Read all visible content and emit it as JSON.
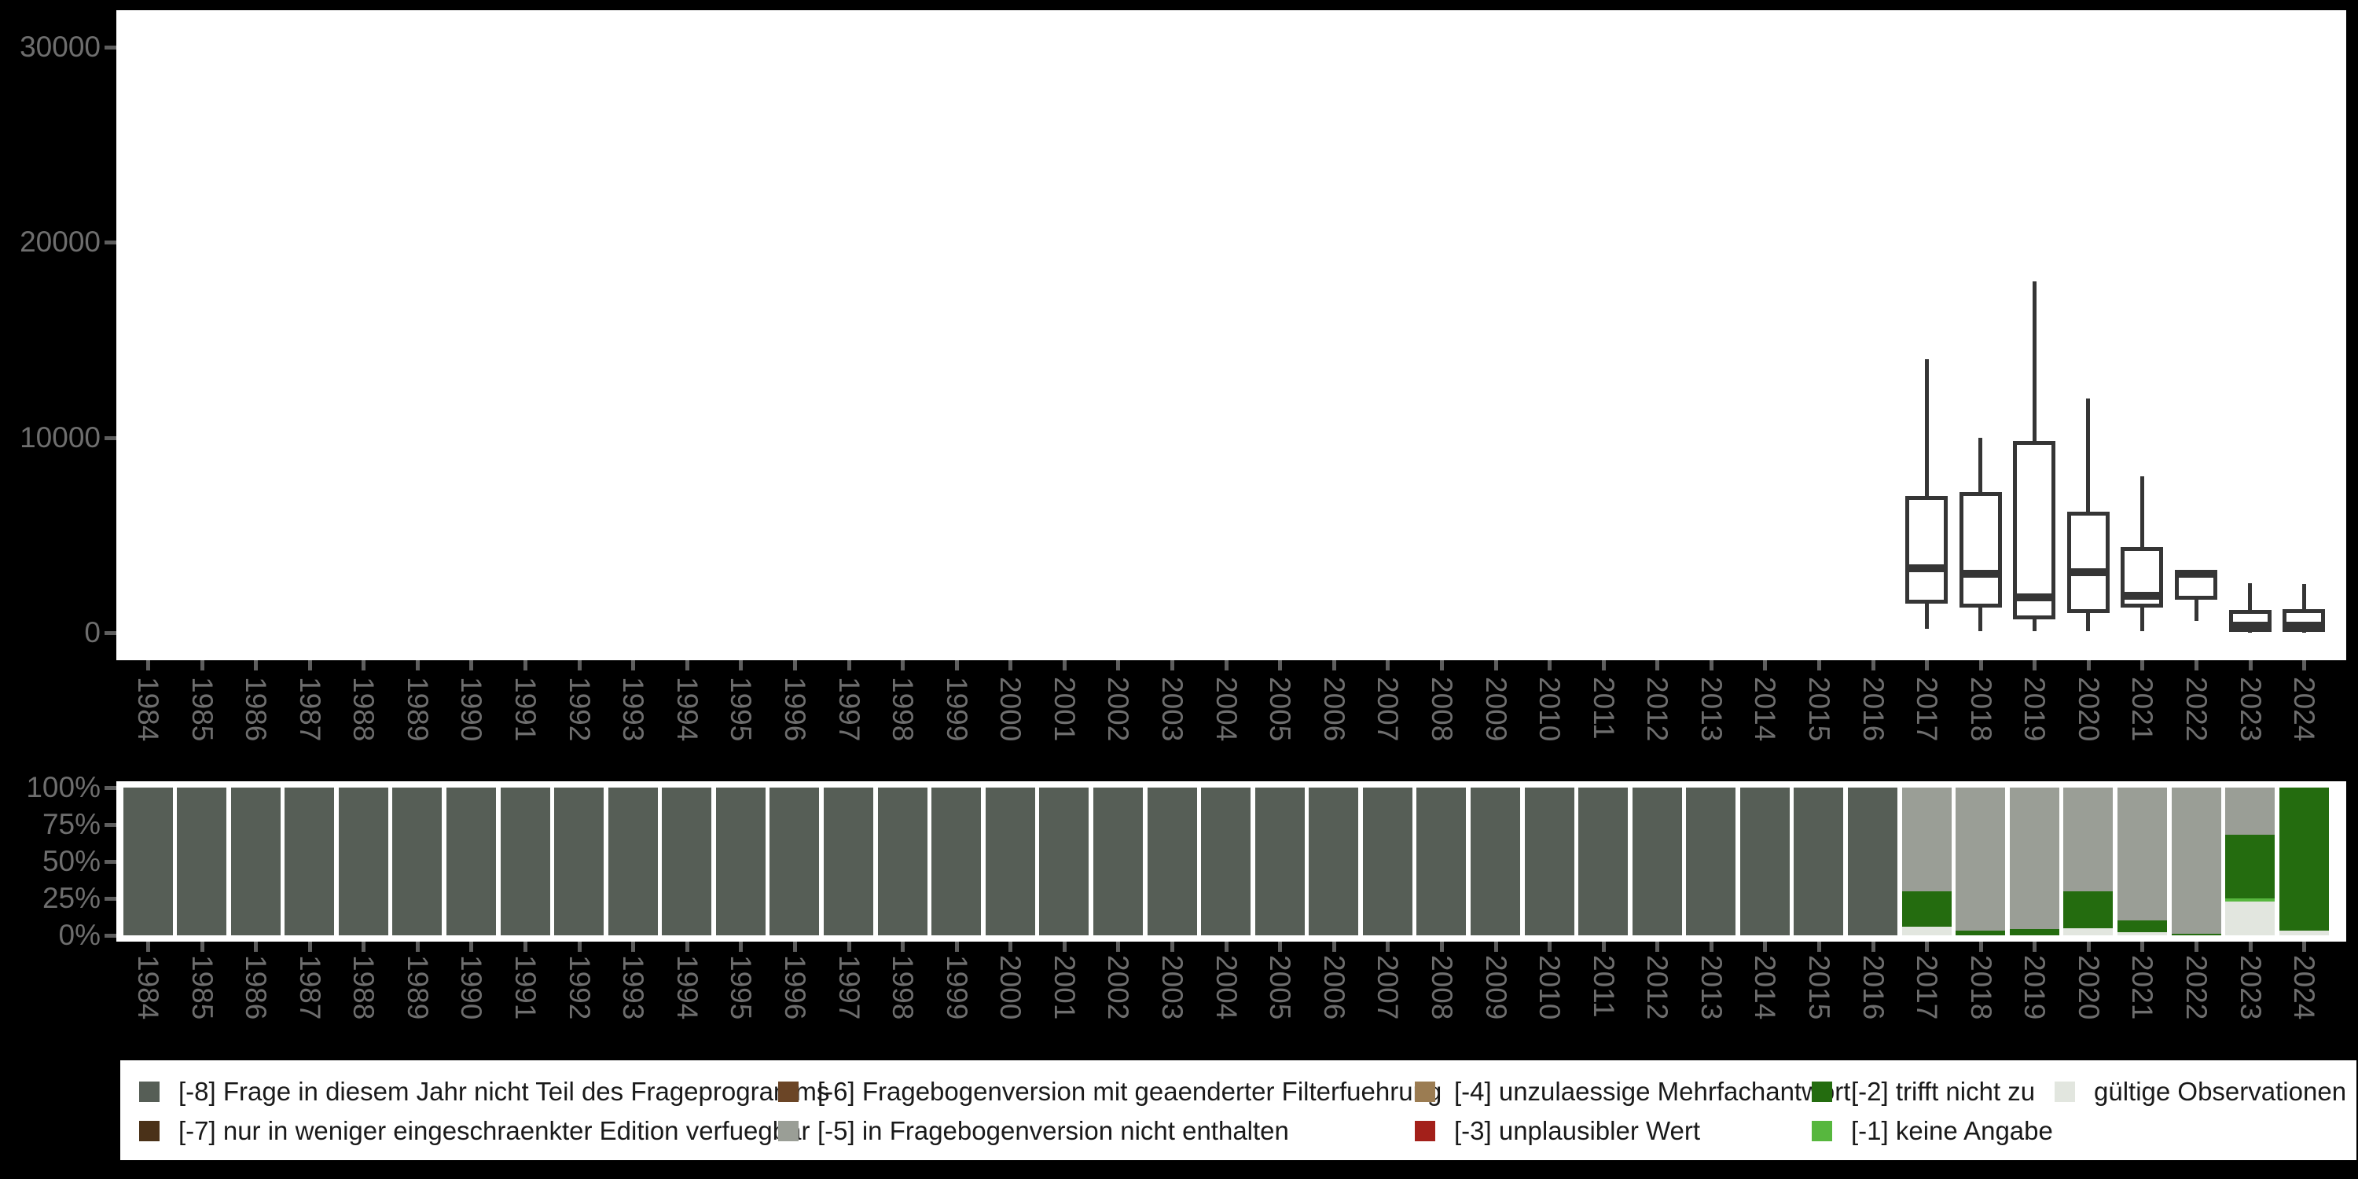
{
  "colors": {
    "m8": "#565e56",
    "m7": "#4a3118",
    "m6": "#6b4526",
    "m5": "#9a9e96",
    "m4": "#9b7c52",
    "m3": "#a3201a",
    "m2": "#246c0f",
    "m1": "#57b73e",
    "valid": "#e2e6df",
    "page_bg": "#000000",
    "panel_bg": "#ffffff",
    "axis_text": "#6e6e6e",
    "tick": "#5e5e5e",
    "box_outline": "#353535",
    "legend_text": "#1a1a1a"
  },
  "chart_data": [
    {
      "type": "boxplot",
      "title": "",
      "xlabel": "",
      "ylabel": "",
      "grid": false,
      "ylim": [
        0,
        30000
      ],
      "y_ticks": [
        0,
        10000,
        20000,
        30000
      ],
      "x_categories": [
        1984,
        1985,
        1986,
        1987,
        1988,
        1989,
        1990,
        1991,
        1992,
        1993,
        1994,
        1995,
        1996,
        1997,
        1998,
        1999,
        2000,
        2001,
        2002,
        2003,
        2004,
        2005,
        2006,
        2007,
        2008,
        2009,
        2010,
        2011,
        2012,
        2013,
        2014,
        2015,
        2016,
        2017,
        2018,
        2019,
        2020,
        2021,
        2022,
        2023,
        2024
      ],
      "boxes": [
        {
          "year": 2017,
          "min": 200,
          "q1": 1500,
          "median": 3300,
          "q3": 7000,
          "max": 14000
        },
        {
          "year": 2018,
          "min": 100,
          "q1": 1300,
          "median": 3000,
          "q3": 7200,
          "max": 10000
        },
        {
          "year": 2019,
          "min": 100,
          "q1": 700,
          "median": 1800,
          "q3": 9800,
          "max": 18000
        },
        {
          "year": 2020,
          "min": 100,
          "q1": 1000,
          "median": 3100,
          "q3": 6200,
          "max": 12000
        },
        {
          "year": 2021,
          "min": 100,
          "q1": 1300,
          "median": 1900,
          "q3": 4400,
          "max": 8000
        },
        {
          "year": 2022,
          "min": 600,
          "q1": 1700,
          "median": 3000,
          "q3": 3100,
          "max": 3100
        },
        {
          "year": 2023,
          "min": 0,
          "q1": 50,
          "median": 350,
          "q3": 1150,
          "max": 2550
        },
        {
          "year": 2024,
          "min": 0,
          "q1": 50,
          "median": 350,
          "q3": 1200,
          "max": 2500
        }
      ]
    },
    {
      "type": "bar",
      "subtype": "stacked_percent",
      "title": "",
      "xlabel": "",
      "ylabel": "",
      "grid": false,
      "ylim": [
        0,
        100
      ],
      "y_ticks": [
        0,
        25,
        50,
        75,
        100
      ],
      "y_tick_suffix": "%",
      "categories": [
        1984,
        1985,
        1986,
        1987,
        1988,
        1989,
        1990,
        1991,
        1992,
        1993,
        1994,
        1995,
        1996,
        1997,
        1998,
        1999,
        2000,
        2001,
        2002,
        2003,
        2004,
        2005,
        2006,
        2007,
        2008,
        2009,
        2010,
        2011,
        2012,
        2013,
        2014,
        2015,
        2016,
        2017,
        2018,
        2019,
        2020,
        2021,
        2022,
        2023,
        2024
      ],
      "bars": [
        {
          "year": 1984,
          "segments": [
            {
              "key": "m8",
              "pct": 100
            }
          ]
        },
        {
          "year": 1985,
          "segments": [
            {
              "key": "m8",
              "pct": 100
            }
          ]
        },
        {
          "year": 1986,
          "segments": [
            {
              "key": "m8",
              "pct": 100
            }
          ]
        },
        {
          "year": 1987,
          "segments": [
            {
              "key": "m8",
              "pct": 100
            }
          ]
        },
        {
          "year": 1988,
          "segments": [
            {
              "key": "m8",
              "pct": 100
            }
          ]
        },
        {
          "year": 1989,
          "segments": [
            {
              "key": "m8",
              "pct": 100
            }
          ]
        },
        {
          "year": 1990,
          "segments": [
            {
              "key": "m8",
              "pct": 100
            }
          ]
        },
        {
          "year": 1991,
          "segments": [
            {
              "key": "m8",
              "pct": 100
            }
          ]
        },
        {
          "year": 1992,
          "segments": [
            {
              "key": "m8",
              "pct": 100
            }
          ]
        },
        {
          "year": 1993,
          "segments": [
            {
              "key": "m8",
              "pct": 100
            }
          ]
        },
        {
          "year": 1994,
          "segments": [
            {
              "key": "m8",
              "pct": 100
            }
          ]
        },
        {
          "year": 1995,
          "segments": [
            {
              "key": "m8",
              "pct": 100
            }
          ]
        },
        {
          "year": 1996,
          "segments": [
            {
              "key": "m8",
              "pct": 100
            }
          ]
        },
        {
          "year": 1997,
          "segments": [
            {
              "key": "m8",
              "pct": 100
            }
          ]
        },
        {
          "year": 1998,
          "segments": [
            {
              "key": "m8",
              "pct": 100
            }
          ]
        },
        {
          "year": 1999,
          "segments": [
            {
              "key": "m8",
              "pct": 100
            }
          ]
        },
        {
          "year": 2000,
          "segments": [
            {
              "key": "m8",
              "pct": 100
            }
          ]
        },
        {
          "year": 2001,
          "segments": [
            {
              "key": "m8",
              "pct": 100
            }
          ]
        },
        {
          "year": 2002,
          "segments": [
            {
              "key": "m8",
              "pct": 100
            }
          ]
        },
        {
          "year": 2003,
          "segments": [
            {
              "key": "m8",
              "pct": 100
            }
          ]
        },
        {
          "year": 2004,
          "segments": [
            {
              "key": "m8",
              "pct": 100
            }
          ]
        },
        {
          "year": 2005,
          "segments": [
            {
              "key": "m8",
              "pct": 100
            }
          ]
        },
        {
          "year": 2006,
          "segments": [
            {
              "key": "m8",
              "pct": 100
            }
          ]
        },
        {
          "year": 2007,
          "segments": [
            {
              "key": "m8",
              "pct": 100
            }
          ]
        },
        {
          "year": 2008,
          "segments": [
            {
              "key": "m8",
              "pct": 100
            }
          ]
        },
        {
          "year": 2009,
          "segments": [
            {
              "key": "m8",
              "pct": 100
            }
          ]
        },
        {
          "year": 2010,
          "segments": [
            {
              "key": "m8",
              "pct": 100
            }
          ]
        },
        {
          "year": 2011,
          "segments": [
            {
              "key": "m8",
              "pct": 100
            }
          ]
        },
        {
          "year": 2012,
          "segments": [
            {
              "key": "m8",
              "pct": 100
            }
          ]
        },
        {
          "year": 2013,
          "segments": [
            {
              "key": "m8",
              "pct": 100
            }
          ]
        },
        {
          "year": 2014,
          "segments": [
            {
              "key": "m8",
              "pct": 100
            }
          ]
        },
        {
          "year": 2015,
          "segments": [
            {
              "key": "m8",
              "pct": 100
            }
          ]
        },
        {
          "year": 2016,
          "segments": [
            {
              "key": "m8",
              "pct": 100
            }
          ]
        },
        {
          "year": 2017,
          "segments": [
            {
              "key": "valid",
              "pct": 6
            },
            {
              "key": "m2",
              "pct": 24
            },
            {
              "key": "m5",
              "pct": 70
            }
          ]
        },
        {
          "year": 2018,
          "segments": [
            {
              "key": "m2",
              "pct": 3
            },
            {
              "key": "m5",
              "pct": 97
            }
          ]
        },
        {
          "year": 2019,
          "segments": [
            {
              "key": "m2",
              "pct": 4.5
            },
            {
              "key": "m5",
              "pct": 95.5
            }
          ]
        },
        {
          "year": 2020,
          "segments": [
            {
              "key": "valid",
              "pct": 5
            },
            {
              "key": "m2",
              "pct": 25
            },
            {
              "key": "m5",
              "pct": 70
            }
          ]
        },
        {
          "year": 2021,
          "segments": [
            {
              "key": "valid",
              "pct": 2
            },
            {
              "key": "m2",
              "pct": 8
            },
            {
              "key": "m5",
              "pct": 90
            }
          ]
        },
        {
          "year": 2022,
          "segments": [
            {
              "key": "m2",
              "pct": 1
            },
            {
              "key": "m5",
              "pct": 99
            }
          ]
        },
        {
          "year": 2023,
          "segments": [
            {
              "key": "valid",
              "pct": 23
            },
            {
              "key": "m1",
              "pct": 2
            },
            {
              "key": "m2",
              "pct": 43
            },
            {
              "key": "m5",
              "pct": 32
            }
          ]
        },
        {
          "year": 2024,
          "segments": [
            {
              "key": "valid",
              "pct": 3
            },
            {
              "key": "m2",
              "pct": 97
            }
          ]
        }
      ]
    }
  ],
  "legend": {
    "entries": {
      "m8": {
        "label": "[-8] Frage in diesem Jahr nicht Teil des Frageprogramms"
      },
      "m7": {
        "label": "[-7] nur in weniger eingeschraenkter Edition verfuegbar"
      },
      "m6": {
        "label": "[-6] Fragebogenversion mit geaenderter Filterfuehrung"
      },
      "m5": {
        "label": "[-5] in Fragebogenversion nicht enthalten"
      },
      "m4": {
        "label": "[-4] unzulaessige Mehrfachantwort"
      },
      "m3": {
        "label": "[-3] unplausibler Wert"
      },
      "m2": {
        "label": "[-2] trifft nicht zu"
      },
      "m1": {
        "label": "[-1] keine Angabe"
      },
      "valid": {
        "label": "gültige Observationen"
      }
    },
    "column_order": [
      [
        "m8",
        "m7"
      ],
      [
        "m6",
        "m5"
      ],
      [
        "m4",
        "m3"
      ],
      [
        "m2",
        "m1"
      ],
      [
        "valid"
      ]
    ]
  }
}
